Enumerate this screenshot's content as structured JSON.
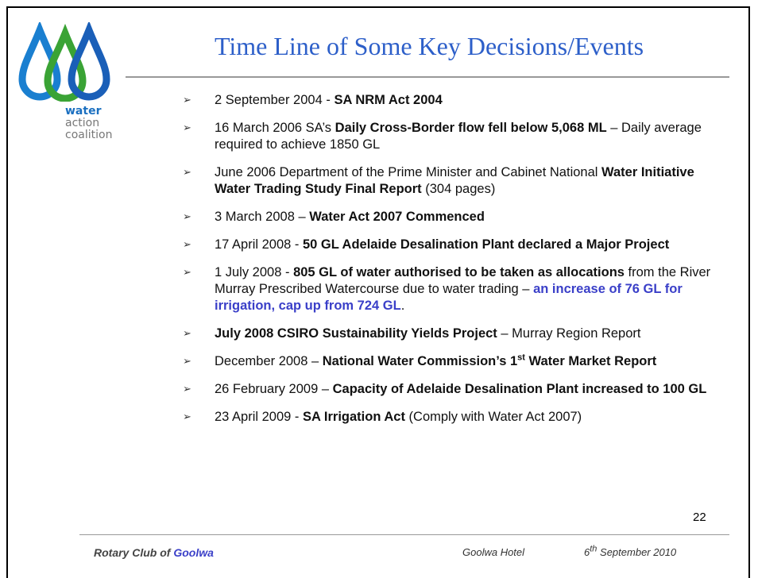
{
  "logo": {
    "lines": [
      "water",
      "action",
      "coalition"
    ]
  },
  "title": "Time Line of Some Key Decisions/Events",
  "items": [
    {
      "runs": [
        {
          "text": "2 September 2004 - "
        },
        {
          "text": "SA NRM Act 2004",
          "bold": true
        }
      ]
    },
    {
      "runs": [
        {
          "text": "16 March 2006 SA’s "
        },
        {
          "text": "Daily Cross-Border flow fell below 5,068 ML",
          "bold": true
        },
        {
          "text": " – Daily average required to achieve 1850 GL"
        }
      ]
    },
    {
      "runs": [
        {
          "text": "June 2006 Department of the Prime Minister and Cabinet National "
        },
        {
          "text": "Water Initiative Water Trading Study Final Report",
          "bold": true
        },
        {
          "text": " (304 pages)"
        }
      ]
    },
    {
      "runs": [
        {
          "text": "3 March 2008 – "
        },
        {
          "text": "Water Act 2007 Commenced",
          "bold": true
        }
      ]
    },
    {
      "runs": [
        {
          "text": "17 April 2008 - "
        },
        {
          "text": "50 GL Adelaide Desalination Plant declared a Major Project",
          "bold": true
        }
      ]
    },
    {
      "runs": [
        {
          "text": "1 July 2008 - "
        },
        {
          "text": "805 GL of water authorised to be taken as allocations",
          "bold": true
        },
        {
          "text": " from the River Murray Prescribed Watercourse due to water trading – "
        },
        {
          "text": "an increase of 76 GL for irrigation, cap up from 724 GL",
          "bold": true,
          "color": "#3a3fc8"
        },
        {
          "text": "."
        }
      ]
    },
    {
      "runs": [
        {
          "text": "July 2008 CSIRO Sustainability Yields Project",
          "bold": true
        },
        {
          "text": " – Murray Region Report"
        }
      ]
    },
    {
      "runs": [
        {
          "text": "December 2008 – "
        },
        {
          "text": "National Water Commission’s 1",
          "bold": true
        },
        {
          "text": "st",
          "bold": true,
          "sup": true
        },
        {
          "text": " Water Market Report",
          "bold": true
        }
      ]
    },
    {
      "runs": [
        {
          "text": "26 February 2009 – "
        },
        {
          "text": "Capacity of Adelaide Desalination Plant increased to 100 GL",
          "bold": true
        }
      ]
    },
    {
      "runs": [
        {
          "text": "23 April 2009 - "
        },
        {
          "text": "SA Irrigation Act",
          "bold": true
        },
        {
          "text": " (Comply with Water Act 2007)"
        }
      ]
    }
  ],
  "page_number": "22",
  "footer": {
    "left": [
      {
        "text": "Rotary Club of "
      },
      {
        "text": "Goolwa",
        "color": "#3a3fc8"
      }
    ],
    "center": "Goolwa Hotel",
    "right": [
      {
        "text": "6"
      },
      {
        "text": "th",
        "sup": true
      },
      {
        "text": " September 2010"
      }
    ]
  }
}
